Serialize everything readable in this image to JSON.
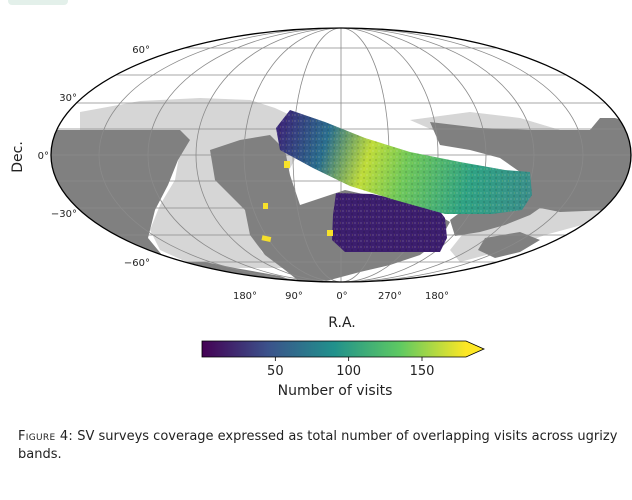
{
  "chart_data": {
    "type": "heatmap",
    "projection": "mollweide",
    "xlabel": "R.A.",
    "ylabel": "Dec.",
    "x_tick_labels": [
      "180°",
      "90°",
      "0°",
      "270°",
      "180°"
    ],
    "y_tick_labels": [
      "60°",
      "30°",
      "0°",
      "−30°",
      "−60°"
    ],
    "colorbar": {
      "label": "Number of visits",
      "ticks": [
        50,
        100,
        150
      ],
      "range": [
        0,
        180
      ],
      "extend": "max",
      "colormap": "viridis"
    },
    "regions": [
      {
        "label": "light grey footprint",
        "color": "#d4d4d4"
      },
      {
        "label": "dark grey footprint",
        "color": "#808080"
      },
      {
        "label": "SV coverage stripe",
        "colormap": "viridis"
      },
      {
        "label": "SV coverage patch",
        "colormap": "viridis"
      }
    ]
  },
  "caption": {
    "label": "Figure 4:",
    "text": " SV surveys coverage expressed as total number of overlapping visits across ugrizy bands."
  }
}
